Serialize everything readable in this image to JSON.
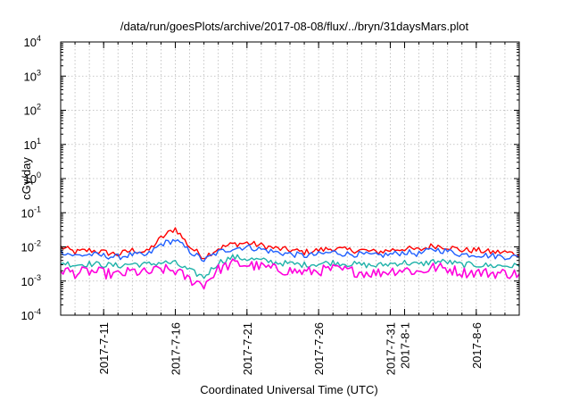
{
  "chart_data": {
    "type": "line",
    "title": "/data/run/goesPlots/archive/2017-08-08/flux/../bryn/31daysMars.plot",
    "xlabel": "Coordinated Universal Time (UTC)",
    "ylabel": "cGy/day",
    "yscale": "log",
    "ylim": [
      0.0001,
      10000
    ],
    "y_ticks": [
      {
        "base": "10",
        "exp": "-4",
        "value": 0.0001
      },
      {
        "base": "10",
        "exp": "-3",
        "value": 0.001
      },
      {
        "base": "10",
        "exp": "-2",
        "value": 0.01
      },
      {
        "base": "10",
        "exp": "-1",
        "value": 0.1
      },
      {
        "base": "10",
        "exp": "0",
        "value": 1
      },
      {
        "base": "10",
        "exp": "1",
        "value": 10
      },
      {
        "base": "10",
        "exp": "2",
        "value": 100
      },
      {
        "base": "10",
        "exp": "3",
        "value": 1000
      },
      {
        "base": "10",
        "exp": "4",
        "value": 10000
      }
    ],
    "xlim": [
      "2017-07-08",
      "2017-08-09"
    ],
    "x_ticks": [
      {
        "label": "2017-7-11",
        "date": "2017-07-11"
      },
      {
        "label": "2017-7-16",
        "date": "2017-07-16"
      },
      {
        "label": "2017-7-21",
        "date": "2017-07-21"
      },
      {
        "label": "2017-7-26",
        "date": "2017-07-26"
      },
      {
        "label": "2017-7-31",
        "date": "2017-07-31"
      },
      {
        "label": "2017-8-1",
        "date": "2017-08-01"
      },
      {
        "label": "2017-8-6",
        "date": "2017-08-06"
      }
    ],
    "grid": true,
    "series": [
      {
        "color": "#ff0000",
        "x": [
          "2017-07-08",
          "2017-07-09",
          "2017-07-10",
          "2017-07-11",
          "2017-07-12",
          "2017-07-13",
          "2017-07-14",
          "2017-07-15",
          "2017-07-16",
          "2017-07-17",
          "2017-07-18",
          "2017-07-19",
          "2017-07-20",
          "2017-07-21",
          "2017-07-22",
          "2017-07-23",
          "2017-07-24",
          "2017-07-25",
          "2017-07-26",
          "2017-07-27",
          "2017-07-28",
          "2017-07-29",
          "2017-07-30",
          "2017-07-31",
          "2017-08-01",
          "2017-08-02",
          "2017-08-03",
          "2017-08-04",
          "2017-08-05",
          "2017-08-06",
          "2017-08-07",
          "2017-08-08",
          "2017-08-09"
        ],
        "y": [
          0.01,
          0.007,
          0.008,
          0.007,
          0.006,
          0.008,
          0.007,
          0.018,
          0.035,
          0.01,
          0.005,
          0.009,
          0.012,
          0.013,
          0.011,
          0.009,
          0.008,
          0.007,
          0.008,
          0.009,
          0.008,
          0.008,
          0.007,
          0.008,
          0.009,
          0.008,
          0.011,
          0.01,
          0.008,
          0.008,
          0.007,
          0.007,
          0.006
        ]
      },
      {
        "color": "#1f5fff",
        "x": [
          "2017-07-08",
          "2017-07-09",
          "2017-07-10",
          "2017-07-11",
          "2017-07-12",
          "2017-07-13",
          "2017-07-14",
          "2017-07-15",
          "2017-07-16",
          "2017-07-17",
          "2017-07-18",
          "2017-07-19",
          "2017-07-20",
          "2017-07-21",
          "2017-07-22",
          "2017-07-23",
          "2017-07-24",
          "2017-07-25",
          "2017-07-26",
          "2017-07-27",
          "2017-07-28",
          "2017-07-29",
          "2017-07-30",
          "2017-07-31",
          "2017-08-01",
          "2017-08-02",
          "2017-08-03",
          "2017-08-04",
          "2017-08-05",
          "2017-08-06",
          "2017-08-07",
          "2017-08-08",
          "2017-08-09"
        ],
        "y": [
          0.0075,
          0.0055,
          0.006,
          0.0055,
          0.005,
          0.006,
          0.0055,
          0.012,
          0.016,
          0.0075,
          0.004,
          0.007,
          0.009,
          0.01,
          0.0085,
          0.007,
          0.0062,
          0.0055,
          0.006,
          0.007,
          0.0062,
          0.006,
          0.0055,
          0.006,
          0.007,
          0.0062,
          0.0085,
          0.0075,
          0.006,
          0.006,
          0.0055,
          0.0052,
          0.005
        ]
      },
      {
        "color": "#20b2aa",
        "x": [
          "2017-07-08",
          "2017-07-09",
          "2017-07-10",
          "2017-07-11",
          "2017-07-12",
          "2017-07-13",
          "2017-07-14",
          "2017-07-15",
          "2017-07-16",
          "2017-07-17",
          "2017-07-18",
          "2017-07-19",
          "2017-07-20",
          "2017-07-21",
          "2017-07-22",
          "2017-07-23",
          "2017-07-24",
          "2017-07-25",
          "2017-07-26",
          "2017-07-27",
          "2017-07-28",
          "2017-07-29",
          "2017-07-30",
          "2017-07-31",
          "2017-08-01",
          "2017-08-02",
          "2017-08-03",
          "2017-08-04",
          "2017-08-05",
          "2017-08-06",
          "2017-08-07",
          "2017-08-08",
          "2017-08-09"
        ],
        "y": [
          0.0035,
          0.003,
          0.0032,
          0.003,
          0.0028,
          0.0032,
          0.003,
          0.0035,
          0.0033,
          0.002,
          0.0013,
          0.0035,
          0.005,
          0.0045,
          0.004,
          0.0035,
          0.0032,
          0.003,
          0.0032,
          0.0035,
          0.0032,
          0.003,
          0.0028,
          0.0032,
          0.0035,
          0.003,
          0.0038,
          0.0036,
          0.003,
          0.003,
          0.0028,
          0.0028,
          0.0027
        ]
      },
      {
        "color": "#ff00dd",
        "x": [
          "2017-07-08",
          "2017-07-09",
          "2017-07-10",
          "2017-07-11",
          "2017-07-12",
          "2017-07-13",
          "2017-07-14",
          "2017-07-15",
          "2017-07-16",
          "2017-07-17",
          "2017-07-18",
          "2017-07-19",
          "2017-07-20",
          "2017-07-21",
          "2017-07-22",
          "2017-07-23",
          "2017-07-24",
          "2017-07-25",
          "2017-07-26",
          "2017-07-27",
          "2017-07-28",
          "2017-07-29",
          "2017-07-30",
          "2017-07-31",
          "2017-08-01",
          "2017-08-02",
          "2017-08-03",
          "2017-08-04",
          "2017-08-05",
          "2017-08-06",
          "2017-08-07",
          "2017-08-08",
          "2017-08-09"
        ],
        "y": [
          0.0022,
          0.0017,
          0.0019,
          0.0017,
          0.0015,
          0.0019,
          0.0017,
          0.0022,
          0.002,
          0.0011,
          0.0008,
          0.0022,
          0.0032,
          0.003,
          0.0026,
          0.0022,
          0.002,
          0.0018,
          0.002,
          0.0022,
          0.002,
          0.0018,
          0.0017,
          0.002,
          0.0022,
          0.0018,
          0.0025,
          0.0023,
          0.0018,
          0.0018,
          0.0017,
          0.0017,
          0.0016
        ]
      }
    ]
  }
}
